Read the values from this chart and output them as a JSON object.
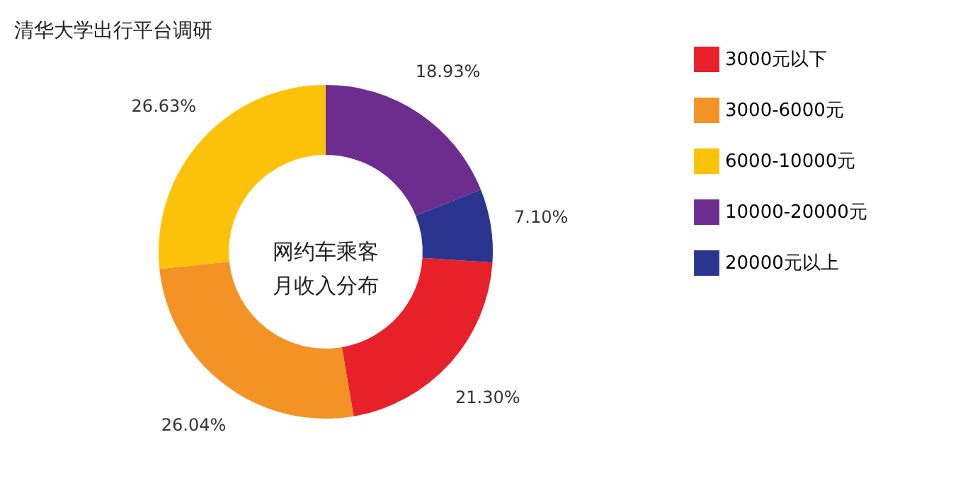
{
  "chart_data": {
    "type": "donut",
    "title": "清华大学出行平台调研",
    "categories": [
      "3000元以下",
      "3000-6000元",
      "6000-10000元",
      "10000-20000元",
      "20000元以上"
    ],
    "values": [
      21.3,
      26.04,
      26.63,
      18.93,
      7.1
    ],
    "colors": [
      "#e8202a",
      "#f39325",
      "#fcc20a",
      "#6c2d8f",
      "#2b3590"
    ],
    "value_labels": [
      "21.30%",
      "26.04%",
      "26.63%",
      "18.93%",
      "7.10%"
    ],
    "annotations": [
      "网约车乘客",
      "月收入分布"
    ],
    "legend": "right"
  }
}
